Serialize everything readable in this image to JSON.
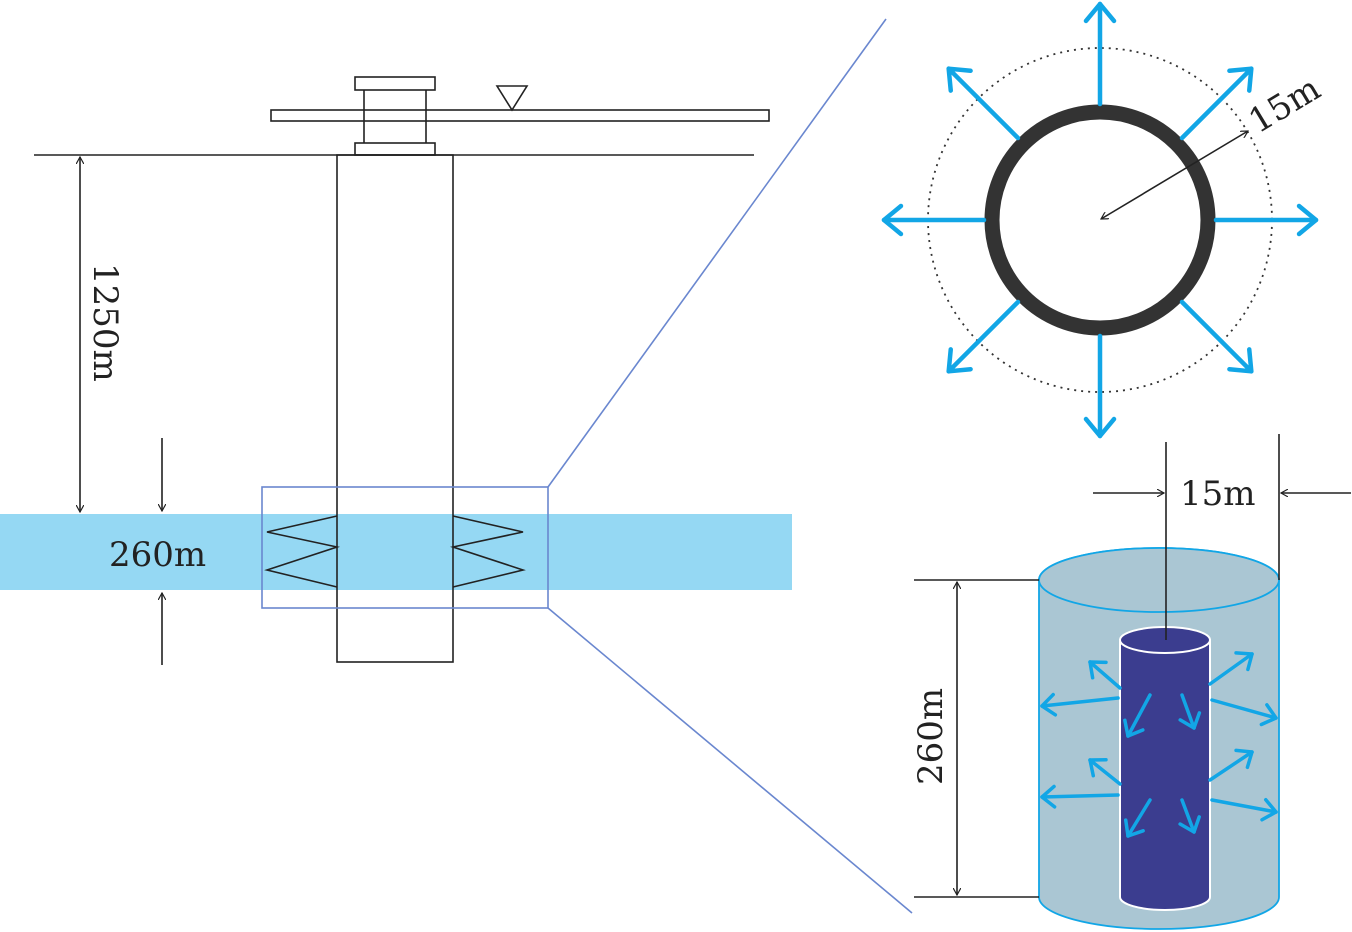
{
  "labels": {
    "depth": "1250m",
    "layer_thickness": "260m",
    "radius_top": "15m",
    "radius_bottom": "15m",
    "cylinder_height": "260m"
  },
  "colors": {
    "line": "#222222",
    "aquifer": "#95d8f3",
    "zoom_frame": "#6a87cf",
    "flow_arrow": "#12a6e6",
    "well_ring": "#333333",
    "cylinder_fill": "#aac6d3",
    "cylinder_edge": "#12a6e6",
    "injection_core": "#3b3d8f"
  }
}
